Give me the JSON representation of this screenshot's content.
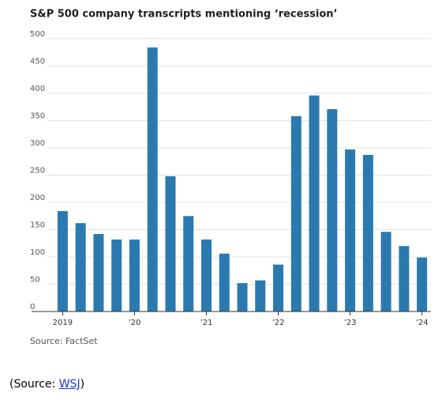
{
  "chart_data": {
    "type": "bar",
    "title": "S&P 500 company transcripts mentioning ‘recession’",
    "source": "Source: FactSet",
    "categories": [
      "2019",
      null,
      null,
      null,
      "’20",
      null,
      null,
      null,
      "’21",
      null,
      null,
      null,
      "’22",
      null,
      null,
      null,
      "’23",
      null,
      null,
      null,
      "’24"
    ],
    "values": [
      184,
      162,
      142,
      132,
      132,
      484,
      248,
      175,
      132,
      106,
      52,
      57,
      86,
      358,
      396,
      371,
      297,
      287,
      146,
      120,
      99
    ],
    "color": "#2a7ab0",
    "ylim": [
      0,
      500
    ],
    "yticks": [
      0,
      50,
      100,
      150,
      200,
      250,
      300,
      350,
      400,
      450,
      500
    ],
    "grid": true
  },
  "footer": {
    "prefix": "(Source: ",
    "link": "WSJ",
    "suffix": ")"
  }
}
